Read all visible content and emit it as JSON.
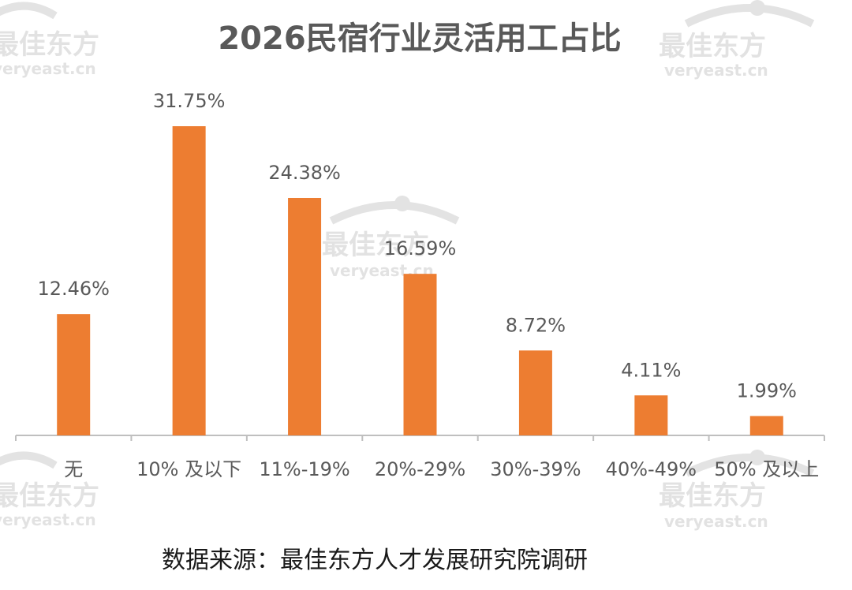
{
  "chart_data": {
    "type": "bar",
    "title": "2026民宿行业灵活用工占比",
    "categories": [
      "无",
      "10% 及以下",
      "11%-19%",
      "20%-29%",
      "30%-39%",
      "40%-49%",
      "50% 及以上"
    ],
    "values": [
      12.46,
      31.75,
      24.38,
      16.59,
      8.72,
      4.11,
      1.99
    ],
    "value_labels": [
      "12.46%",
      "31.75%",
      "24.38%",
      "16.59%",
      "8.72%",
      "4.11%",
      "1.99%"
    ],
    "xlabel": "",
    "ylabel": "",
    "ylim": [
      0,
      31.75
    ],
    "grid": false,
    "bar_color": "#ed7d31",
    "source": "数据来源：最佳东方人才发展研究院调研"
  },
  "watermark": {
    "brand": "最佳东方",
    "domain": "veryeast.cn"
  },
  "colors": {
    "bar": "#ed7d31",
    "text": "#595959",
    "axis": "#bfbfbf",
    "watermark": "#d9d9d9"
  }
}
